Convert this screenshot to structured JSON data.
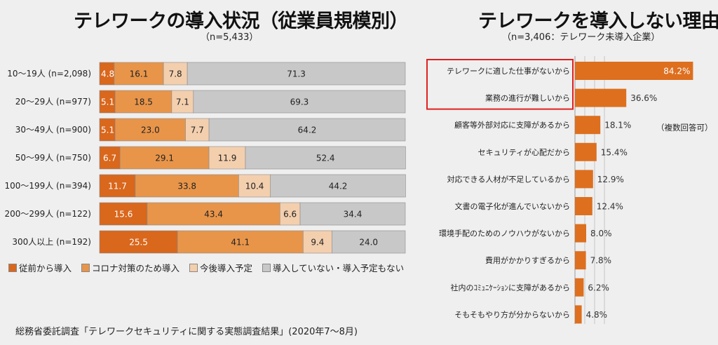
{
  "left": {
    "title": "テレワークの導入状況（従業員規模別）",
    "subtitle": "（n=5,433）",
    "legend": [
      {
        "label": "従前から導入",
        "color": "#d9671c"
      },
      {
        "label": "コロナ対策のため導入",
        "color": "#e8954a"
      },
      {
        "label": "今後導入予定",
        "color": "#f3cfae"
      },
      {
        "label": "導入していない・導入予定もない",
        "color": "#c8c8c8"
      }
    ]
  },
  "right": {
    "title": "テレワークを導入しない理由",
    "subtitle": "（n=3,406：テレワーク未導入企業）",
    "note": "（複数回答可）"
  },
  "source": "総務省委託調査「テレワークセキュリティに関する実態調査結果」(2020年7～8月)",
  "chart_data": [
    {
      "type": "bar",
      "orientation": "horizontal",
      "stacked": true,
      "title": "テレワークの導入状況（従業員規模別）",
      "subtitle": "（n=5,433）",
      "categories": [
        "10～19人 (n=2,098)",
        "20～29人 (n=977)",
        "30～49人 (n=900)",
        "50～99人 (n=750)",
        "100～199人 (n=394)",
        "200～299人 (n=122)",
        "300人以上 (n=192)"
      ],
      "series": [
        {
          "name": "従前から導入",
          "color": "#d9671c",
          "values": [
            4.8,
            5.1,
            5.1,
            6.7,
            11.7,
            15.6,
            25.5
          ]
        },
        {
          "name": "コロナ対策のため導入",
          "color": "#e8954a",
          "values": [
            16.1,
            18.5,
            23.0,
            29.1,
            33.8,
            43.4,
            41.1
          ]
        },
        {
          "name": "今後導入予定",
          "color": "#f3cfae",
          "values": [
            7.8,
            7.1,
            7.7,
            11.9,
            10.4,
            6.6,
            9.4
          ]
        },
        {
          "name": "導入していない・導入予定もない",
          "color": "#c8c8c8",
          "values": [
            71.3,
            69.3,
            64.2,
            52.4,
            44.2,
            34.4,
            24.0
          ]
        }
      ],
      "value_labels": [
        [
          "4.8",
          "16.1",
          "7.8",
          "71.3"
        ],
        [
          "5.1",
          "18.5",
          "7.1",
          "69.3"
        ],
        [
          "5.1",
          "23.0",
          "7.7",
          "64.2"
        ],
        [
          "6.7",
          "29.1",
          "11.9",
          "52.4"
        ],
        [
          "11.7",
          "33.8",
          "10.4",
          "44.2"
        ],
        [
          "15.6",
          "43.4",
          "6.6",
          "34.4"
        ],
        [
          "25.5",
          "41.1",
          "9.4",
          "24.0"
        ]
      ],
      "xlim": [
        0,
        100
      ],
      "legend_position": "bottom"
    },
    {
      "type": "bar",
      "orientation": "horizontal",
      "title": "テレワークを導入しない理由",
      "subtitle": "（n=3,406：テレワーク未導入企業）",
      "categories": [
        "テレワークに適した仕事がないから",
        "業務の進行が難しいから",
        "顧客等外部対応に支障があるから",
        "セキュリティが心配だから",
        "対応できる人材が不足しているから",
        "文書の電子化が進んでいないから",
        "環境手配のためのノウハウがないから",
        "費用がかかりすぎるから",
        "社内のｺﾐｭﾆｹｰｼｮﾝに支障があるから",
        "そもそもやり方が分からないから"
      ],
      "values": [
        84.2,
        36.6,
        18.1,
        15.4,
        12.9,
        12.4,
        8.0,
        7.8,
        6.2,
        4.8
      ],
      "value_labels": [
        "84.2%",
        "36.6%",
        "18.1%",
        "15.4%",
        "12.9%",
        "12.4%",
        "8.0%",
        "7.8%",
        "6.2%",
        "4.8%"
      ],
      "color": "#dd6f1f",
      "highlight_color": "#e02020",
      "highlighted": [
        0,
        1
      ],
      "xlim": [
        0,
        100
      ]
    }
  ]
}
